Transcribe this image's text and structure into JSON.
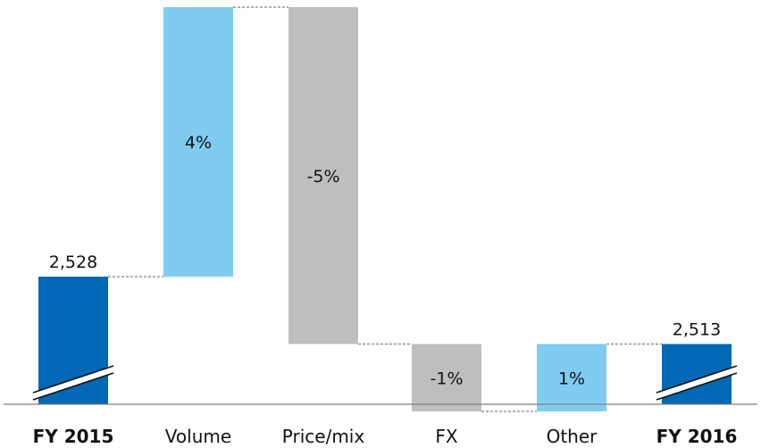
{
  "chart_data": {
    "type": "waterfall",
    "title": "",
    "xlabel": "",
    "ylabel": "",
    "grid": false,
    "legend": "none",
    "categories": [
      "FY 2015",
      "Volume",
      "Price/mix",
      "FX",
      "Other",
      "FY 2016"
    ],
    "bold_categories": [
      "FY 2015",
      "FY 2016"
    ],
    "bars": [
      {
        "category": "FY 2015",
        "kind": "total",
        "value": 2528,
        "label": "2,528",
        "color": "#0068b4"
      },
      {
        "category": "Volume",
        "kind": "delta",
        "value": 4,
        "label": "4%",
        "color": "#80ccf1"
      },
      {
        "category": "Price/mix",
        "kind": "delta",
        "value": -5,
        "label": "-5%",
        "color": "#bebebe"
      },
      {
        "category": "FX",
        "kind": "delta",
        "value": -1,
        "label": "-1%",
        "color": "#bebebe"
      },
      {
        "category": "Other",
        "kind": "delta",
        "value": 1,
        "label": "1%",
        "color": "#80ccf1"
      },
      {
        "category": "FY 2016",
        "kind": "total",
        "value": 2513,
        "label": "2,513",
        "color": "#0068b4"
      }
    ],
    "axis_break": true,
    "connector_color": "#7f7f7f"
  }
}
